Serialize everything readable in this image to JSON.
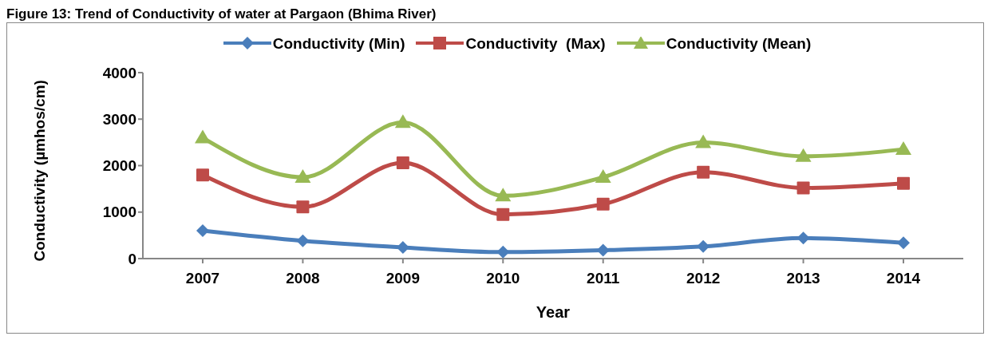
{
  "chart_data": {
    "type": "line",
    "title": "Figure 13: Trend of Conductivity of water at Pargaon (Bhima River)",
    "xlabel": "Year",
    "ylabel": "Conductivity  (µmhos/cm)",
    "categories": [
      "2007",
      "2008",
      "2009",
      "2010",
      "2011",
      "2012",
      "2013",
      "2014"
    ],
    "series": [
      {
        "name": "Conductivity (Min)",
        "color": "#4a7ebb",
        "marker": "diamond",
        "values": [
          600,
          380,
          240,
          140,
          180,
          260,
          440,
          340
        ]
      },
      {
        "name": "Conductivity  (Max)",
        "color": "#be4b48",
        "marker": "square",
        "values": [
          1800,
          1110,
          2060,
          950,
          1170,
          1860,
          1520,
          1620
        ]
      },
      {
        "name": "Conductivity (Mean)",
        "color": "#98b954",
        "marker": "triangle",
        "values": [
          2600,
          1750,
          2930,
          1350,
          1750,
          2500,
          2200,
          2350
        ]
      }
    ],
    "ylim": [
      0,
      4000
    ],
    "yticks": [
      0,
      1000,
      2000,
      3000,
      4000
    ],
    "grid": false,
    "legend": "top"
  }
}
